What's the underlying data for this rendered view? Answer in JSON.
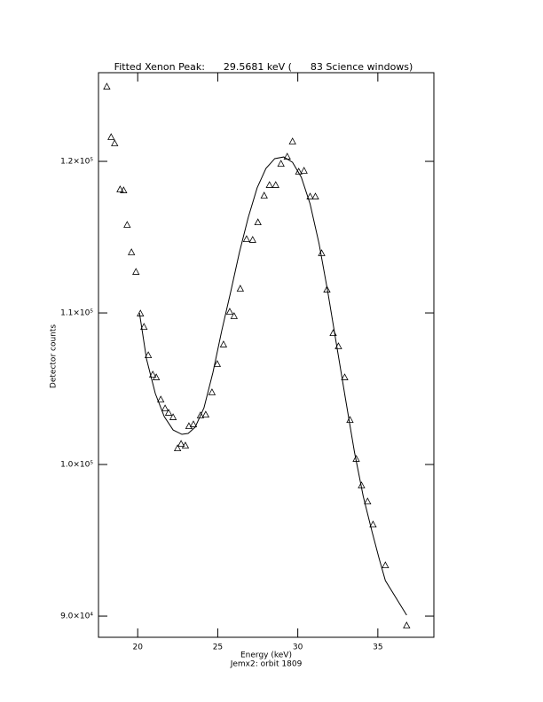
{
  "chart_data": {
    "type": "scatter",
    "title": "Fitted Xenon Peak:      29.5681 keV (      83 Science windows)",
    "xlabel": "Energy (keV)",
    "ylabel": "Detector counts",
    "subtitle": "Jemx2: orbit 1809",
    "xlim": [
      17.55,
      38.5
    ],
    "ylim": [
      88600,
      125850
    ],
    "xticks": [
      20,
      25,
      30,
      35
    ],
    "yticks": [
      {
        "value": 90000,
        "label": "9.0×10⁴"
      },
      {
        "value": 100000,
        "label": "1.0×10⁵"
      },
      {
        "value": 110000,
        "label": "1.1×10⁵"
      },
      {
        "value": 120000,
        "label": "1.2×10⁵"
      }
    ],
    "color": "#000000",
    "series": [
      {
        "mode": "markers",
        "x": [
          18.07,
          18.34,
          18.56,
          18.9,
          19.12,
          19.34,
          19.61,
          19.89,
          20.17,
          20.39,
          20.66,
          20.94,
          21.16,
          21.44,
          21.71,
          21.93,
          22.21,
          22.49,
          22.71,
          22.98,
          23.2,
          23.48,
          23.92,
          24.25,
          24.64,
          24.97,
          25.36,
          25.75,
          26.02,
          26.41,
          26.8,
          27.18,
          27.51,
          27.9,
          28.23,
          28.62,
          28.95,
          29.34,
          29.67,
          30.06,
          30.39,
          30.77,
          31.1,
          31.49,
          31.82,
          32.21,
          32.54,
          32.93,
          33.26,
          33.65,
          33.98,
          34.36,
          34.7,
          35.47,
          36.8
        ],
        "values": [
          124910,
          121580,
          121170,
          118130,
          118070,
          115790,
          113980,
          112690,
          109940,
          109060,
          107190,
          105910,
          105730,
          104270,
          103680,
          103390,
          103100,
          101050,
          101340,
          101230,
          102510,
          102630,
          103220,
          103270,
          104740,
          106610,
          107900,
          110060,
          109770,
          111580,
          114850,
          114800,
          115960,
          117720,
          118420,
          118420,
          119820,
          120290,
          121290,
          119300,
          119360,
          117660,
          117660,
          113920,
          111520,
          108650,
          107780,
          105730,
          102920,
          100350,
          98600,
          97540,
          96020,
          93330,
          89360
        ]
      },
      {
        "mode": "line",
        "x": [
          20.11,
          20.55,
          21.1,
          21.66,
          22.21,
          22.76,
          23.15,
          23.59,
          24.14,
          24.7,
          25.25,
          25.8,
          26.35,
          26.91,
          27.46,
          28.01,
          28.56,
          29.12,
          29.67,
          30.22,
          30.77,
          31.33,
          31.88,
          32.43,
          32.98,
          33.54,
          34.09,
          34.64,
          35.08,
          35.47,
          36.8
        ],
        "values": [
          110000,
          106960,
          104680,
          103160,
          102280,
          101990,
          102050,
          102460,
          103740,
          106080,
          108830,
          111350,
          113980,
          116320,
          118250,
          119530,
          120180,
          120290,
          119940,
          118950,
          117190,
          114560,
          111350,
          107840,
          104330,
          100820,
          97890,
          95560,
          93800,
          92340,
          90060
        ]
      }
    ]
  }
}
